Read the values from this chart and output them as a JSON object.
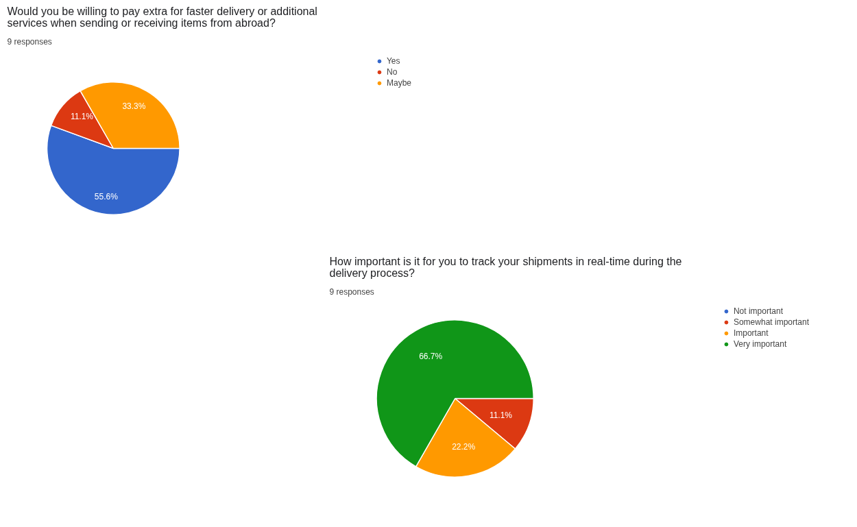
{
  "chart_data": [
    {
      "type": "pie",
      "title": "Would you be willing to pay extra for faster delivery or additional services when sending or receiving items from abroad?",
      "subtitle": "9 responses",
      "categories": [
        "Yes",
        "No",
        "Maybe"
      ],
      "values": [
        55.6,
        11.1,
        33.3
      ],
      "colors": [
        "#3366cc",
        "#dc3912",
        "#ff9900"
      ],
      "value_labels": [
        "55.6%",
        "11.1%",
        "33.3%"
      ],
      "legend": "top right"
    },
    {
      "type": "pie",
      "title": "How important is it for you to track your shipments in real-time during the delivery process?",
      "subtitle": "9 responses",
      "categories": [
        "Not important",
        "Somewhat important",
        "Important",
        "Very important"
      ],
      "values": [
        0,
        11.1,
        22.2,
        66.7
      ],
      "colors": [
        "#3366cc",
        "#dc3912",
        "#ff9900",
        "#109618"
      ],
      "value_labels": [
        null,
        "11.1%",
        "22.2%",
        "66.7%"
      ],
      "legend": "top right"
    }
  ]
}
